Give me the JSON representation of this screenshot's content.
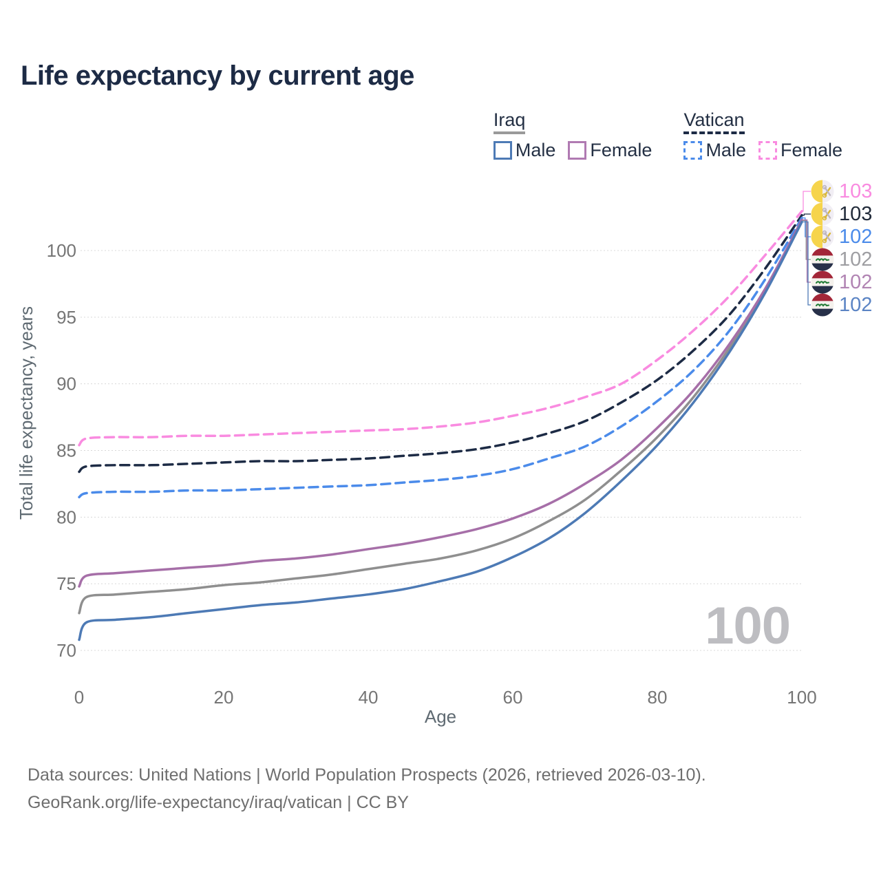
{
  "title": "Life expectancy by current age",
  "watermark": "100",
  "legend": {
    "groups": [
      {
        "name": "Iraq",
        "line_style": "solid",
        "underline_color": "#9a9a9a",
        "items": [
          {
            "label": "Male",
            "color": "#4d7ab5"
          },
          {
            "label": "Female",
            "color": "#b07ab2"
          }
        ]
      },
      {
        "name": "Vatican",
        "line_style": "dashed",
        "underline_color": "#1d2b45",
        "items": [
          {
            "label": "Male",
            "color": "#4b8bea"
          },
          {
            "label": "Female",
            "color": "#f98be0"
          }
        ]
      }
    ]
  },
  "footer": {
    "line1": "Data sources: United Nations | World Population Prospects (2026, retrieved 2026-03-10).",
    "line2": "GeoRank.org/life-expectancy/iraq/vatican | CC BY"
  },
  "chart_data": {
    "type": "line",
    "title": "Life expectancy by current age",
    "xlabel": "Age",
    "ylabel": "Total life expectancy, years",
    "xlim": [
      0,
      100
    ],
    "ylim": [
      70,
      103.5
    ],
    "xticks": [
      0,
      20,
      40,
      60,
      80,
      100
    ],
    "yticks": [
      70,
      75,
      80,
      85,
      90,
      95,
      100
    ],
    "grid": true,
    "legend_position": "top-right",
    "x": [
      0,
      1,
      5,
      10,
      15,
      20,
      25,
      30,
      35,
      40,
      45,
      50,
      55,
      60,
      65,
      70,
      75,
      80,
      85,
      90,
      95,
      100
    ],
    "series": [
      {
        "name": "Vatican Female",
        "country": "vatican",
        "sex": "female",
        "dash": true,
        "color": "#f98be0",
        "end_label": "103",
        "end_label_color": "#f98be0",
        "values": [
          85.4,
          85.9,
          86.0,
          86.0,
          86.1,
          86.1,
          86.2,
          86.3,
          86.4,
          86.5,
          86.6,
          86.8,
          87.1,
          87.6,
          88.2,
          89.0,
          90.0,
          91.8,
          94.0,
          96.6,
          99.7,
          102.95
        ]
      },
      {
        "name": "Vatican",
        "country": "vatican",
        "sex": "total",
        "dash": true,
        "color": "#1d2b45",
        "end_label": "103",
        "end_label_color": "#222b3a",
        "values": [
          83.4,
          83.8,
          83.9,
          83.9,
          84.0,
          84.1,
          84.2,
          84.2,
          84.3,
          84.4,
          84.6,
          84.8,
          85.1,
          85.6,
          86.3,
          87.2,
          88.6,
          90.3,
          92.5,
          95.2,
          98.7,
          102.65
        ]
      },
      {
        "name": "Vatican Male",
        "country": "vatican",
        "sex": "male",
        "dash": true,
        "color": "#4b8bea",
        "end_label": "102",
        "end_label_color": "#4b8bea",
        "values": [
          81.5,
          81.8,
          81.9,
          81.9,
          82.0,
          82.0,
          82.1,
          82.2,
          82.3,
          82.4,
          82.6,
          82.8,
          83.1,
          83.6,
          84.4,
          85.3,
          86.8,
          88.7,
          91.0,
          94.0,
          97.9,
          102.45
        ]
      },
      {
        "name": "Iraq",
        "country": "iraq",
        "sex": "total",
        "dash": false,
        "color": "#8f8f8f",
        "end_label": "102",
        "end_label_color": "#9e9ea2",
        "values": [
          72.8,
          74.0,
          74.2,
          74.4,
          74.6,
          74.9,
          75.1,
          75.4,
          75.7,
          76.1,
          76.5,
          76.9,
          77.5,
          78.4,
          79.7,
          81.3,
          83.5,
          86.0,
          89.0,
          92.7,
          97.0,
          102.25
        ]
      },
      {
        "name": "Iraq Female",
        "country": "iraq",
        "sex": "female",
        "dash": false,
        "color": "#a66fa8",
        "end_label": "102",
        "end_label_color": "#b184b3",
        "values": [
          74.8,
          75.6,
          75.8,
          76.0,
          76.2,
          76.4,
          76.7,
          76.9,
          77.2,
          77.6,
          78.0,
          78.5,
          79.1,
          79.9,
          81.0,
          82.5,
          84.3,
          86.7,
          89.5,
          93.0,
          97.2,
          102.3
        ]
      },
      {
        "name": "Iraq Male",
        "country": "iraq",
        "sex": "male",
        "dash": false,
        "color": "#4d7ab5",
        "end_label": "102",
        "end_label_color": "#5b84c4",
        "values": [
          70.8,
          72.1,
          72.3,
          72.5,
          72.8,
          73.1,
          73.4,
          73.6,
          73.9,
          74.2,
          74.6,
          75.2,
          75.9,
          77.0,
          78.4,
          80.3,
          82.7,
          85.4,
          88.6,
          92.4,
          96.9,
          102.15
        ]
      }
    ]
  }
}
